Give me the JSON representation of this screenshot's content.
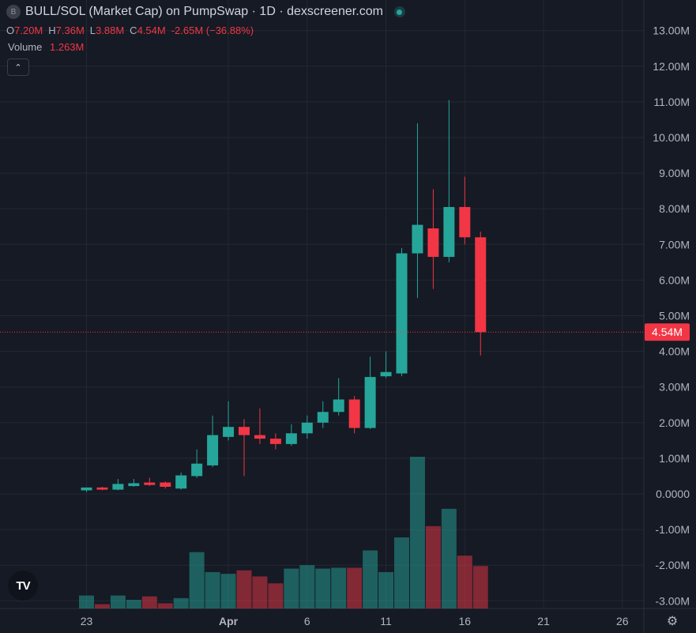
{
  "header": {
    "symbol_icon": "B",
    "title": "BULL/SOL (Market Cap) on PumpSwap · 1D · dexscreener.com",
    "live_indicator": "green-dot-icon"
  },
  "ohlc": {
    "o_label": "O",
    "o_value": "7.20M",
    "h_label": "H",
    "h_value": "7.36M",
    "l_label": "L",
    "l_value": "3.88M",
    "c_label": "C",
    "c_value": "4.54M",
    "change": "-2.65M (−36.88%)"
  },
  "volume_legend": {
    "label": "Volume",
    "value": "1.263M"
  },
  "collapse_icon": "chevron-up-icon",
  "last_price_label": "4.54M",
  "logo": "TV",
  "settings_icon": "gear-icon",
  "colors": {
    "up": "#26a69a",
    "down": "#f23645",
    "background": "#151a24",
    "grid": "#232834"
  },
  "chart_data": {
    "type": "candlestick",
    "y_axis_ticks": [
      "13.00M",
      "12.00M",
      "11.00M",
      "10.00M",
      "9.00M",
      "8.00M",
      "7.00M",
      "6.00M",
      "5.00M",
      "4.00M",
      "3.00M",
      "2.00M",
      "1.00M",
      "0.0000",
      "-1.00M",
      "-2.00M",
      "-3.00M"
    ],
    "y_tick_values": [
      13,
      12,
      11,
      10,
      9,
      8,
      7,
      6,
      5,
      4,
      3,
      2,
      1,
      0,
      -1,
      -2,
      -3
    ],
    "x_axis_ticks": [
      {
        "label": "23",
        "day": 0
      },
      {
        "label": "Apr",
        "day": 9
      },
      {
        "label": "6",
        "day": 14
      },
      {
        "label": "11",
        "day": 19
      },
      {
        "label": "16",
        "day": 24
      },
      {
        "label": "21",
        "day": 29
      },
      {
        "label": "26",
        "day": 34
      }
    ],
    "ylim": [
      -3.3,
      13.3
    ],
    "unit": "M",
    "last_close": 4.54,
    "candles": [
      {
        "day": 0,
        "o": 0.1,
        "h": 0.18,
        "l": 0.05,
        "c": 0.18,
        "v": 0.15
      },
      {
        "day": 1,
        "o": 0.18,
        "h": 0.2,
        "l": 0.1,
        "c": 0.12,
        "v": 0.05
      },
      {
        "day": 2,
        "o": 0.12,
        "h": 0.42,
        "l": 0.1,
        "c": 0.28,
        "v": 0.15
      },
      {
        "day": 3,
        "o": 0.22,
        "h": 0.42,
        "l": 0.2,
        "c": 0.3,
        "v": 0.1
      },
      {
        "day": 4,
        "o": 0.32,
        "h": 0.45,
        "l": 0.22,
        "c": 0.25,
        "v": 0.14
      },
      {
        "day": 5,
        "o": 0.32,
        "h": 0.35,
        "l": 0.15,
        "c": 0.2,
        "v": 0.06
      },
      {
        "day": 6,
        "o": 0.15,
        "h": 0.6,
        "l": 0.12,
        "c": 0.52,
        "v": 0.12
      },
      {
        "day": 7,
        "o": 0.5,
        "h": 1.25,
        "l": 0.45,
        "c": 0.85,
        "v": 0.65
      },
      {
        "day": 8,
        "o": 0.8,
        "h": 2.2,
        "l": 0.75,
        "c": 1.65,
        "v": 0.42
      },
      {
        "day": 9,
        "o": 1.6,
        "h": 2.6,
        "l": 1.5,
        "c": 1.88,
        "v": 0.4
      },
      {
        "day": 10,
        "o": 1.88,
        "h": 2.1,
        "l": 0.5,
        "c": 1.65,
        "v": 0.44
      },
      {
        "day": 11,
        "o": 1.65,
        "h": 2.4,
        "l": 1.4,
        "c": 1.55,
        "v": 0.37
      },
      {
        "day": 12,
        "o": 1.55,
        "h": 1.7,
        "l": 1.25,
        "c": 1.4,
        "v": 0.29
      },
      {
        "day": 13,
        "o": 1.4,
        "h": 1.95,
        "l": 1.35,
        "c": 1.7,
        "v": 0.46
      },
      {
        "day": 14,
        "o": 1.7,
        "h": 2.2,
        "l": 1.55,
        "c": 2.0,
        "v": 0.5
      },
      {
        "day": 15,
        "o": 2.0,
        "h": 2.6,
        "l": 1.85,
        "c": 2.3,
        "v": 0.46
      },
      {
        "day": 16,
        "o": 2.3,
        "h": 3.25,
        "l": 2.2,
        "c": 2.65,
        "v": 0.47
      },
      {
        "day": 17,
        "o": 2.65,
        "h": 2.75,
        "l": 1.7,
        "c": 1.85,
        "v": 0.47
      },
      {
        "day": 18,
        "o": 1.85,
        "h": 3.85,
        "l": 1.82,
        "c": 3.28,
        "v": 0.67
      },
      {
        "day": 19,
        "o": 3.3,
        "h": 4.0,
        "l": 3.25,
        "c": 3.42,
        "v": 0.42
      },
      {
        "day": 20,
        "o": 3.38,
        "h": 6.9,
        "l": 3.3,
        "c": 6.75,
        "v": 0.82
      },
      {
        "day": 21,
        "o": 6.75,
        "h": 10.4,
        "l": 5.5,
        "c": 7.55,
        "v": 1.75
      },
      {
        "day": 22,
        "o": 7.45,
        "h": 8.55,
        "l": 5.75,
        "c": 6.65,
        "v": 0.95
      },
      {
        "day": 23,
        "o": 6.65,
        "h": 11.05,
        "l": 6.5,
        "c": 8.05,
        "v": 1.15
      },
      {
        "day": 24,
        "o": 8.05,
        "h": 8.9,
        "l": 7.0,
        "c": 7.2,
        "v": 0.61
      },
      {
        "day": 25,
        "o": 7.2,
        "h": 7.36,
        "l": 3.88,
        "c": 4.54,
        "v": 0.49
      }
    ]
  }
}
